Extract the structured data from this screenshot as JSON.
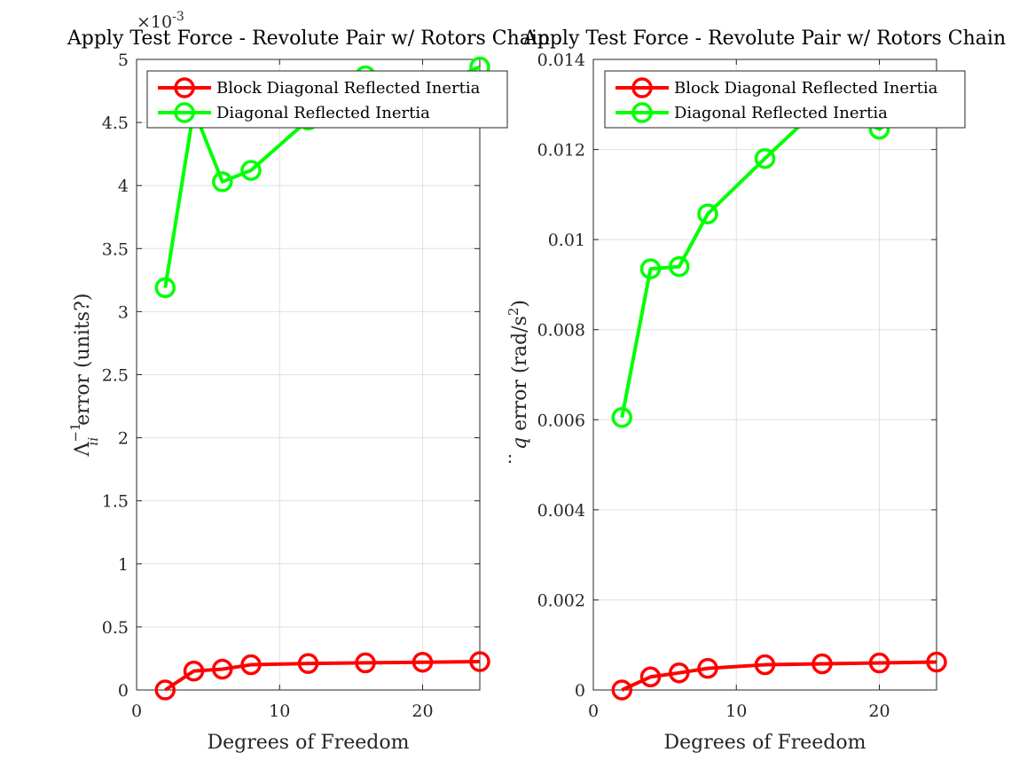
{
  "chart_data": [
    {
      "type": "line",
      "title": "Apply Test Force - Revolute Pair w/ Rotors Chain",
      "xlabel": "Degrees of Freedom",
      "ylabel_parts": {
        "base": "Λ",
        "sup": "−1",
        "sub": "ii",
        "rest": " error (units?)"
      },
      "exponent_label": "×10",
      "exponent_value": "-3",
      "xlim": [
        0,
        24
      ],
      "ylim": [
        0,
        5
      ],
      "xticks": [
        0,
        10,
        20
      ],
      "xtick_labels": [
        "0",
        "10",
        "20"
      ],
      "yticks": [
        0,
        0.5,
        1,
        1.5,
        2,
        2.5,
        3,
        3.5,
        4,
        4.5,
        5
      ],
      "ytick_labels": [
        "0",
        "0.5",
        "1",
        "1.5",
        "2",
        "2.5",
        "3",
        "3.5",
        "4",
        "4.5",
        "5"
      ],
      "grid": true,
      "legend_position": "top-right",
      "series": [
        {
          "name": "Block Diagonal Reflected Inertia",
          "color": "#ff0000",
          "x": [
            2,
            4,
            6,
            8,
            12,
            16,
            20,
            24
          ],
          "y": [
            0.0,
            0.15,
            0.165,
            0.2,
            0.21,
            0.215,
            0.22,
            0.225
          ]
        },
        {
          "name": "Diagonal Reflected Inertia",
          "color": "#00ff00",
          "x": [
            2,
            4,
            6,
            8,
            12,
            16,
            20,
            24
          ],
          "y": [
            3.19,
            4.6,
            4.03,
            4.12,
            4.52,
            4.87,
            4.75,
            4.94
          ]
        }
      ]
    },
    {
      "type": "line",
      "title": "Apply Test Force - Revolute Pair w/ Rotors Chain",
      "xlabel": "Degrees of Freedom",
      "ylabel_parts": {
        "qddot": "q",
        "rest": " error (rad/s",
        "sup": "2",
        "close": ")"
      },
      "xlim": [
        0,
        24
      ],
      "ylim": [
        0,
        0.014
      ],
      "xticks": [
        0,
        10,
        20
      ],
      "xtick_labels": [
        "0",
        "10",
        "20"
      ],
      "yticks": [
        0,
        0.002,
        0.004,
        0.006,
        0.008,
        0.01,
        0.012,
        0.014
      ],
      "ytick_labels": [
        "0",
        "0.002",
        "0.004",
        "0.006",
        "0.008",
        "0.01",
        "0.012",
        "0.014"
      ],
      "grid": true,
      "legend_position": "top-right",
      "series": [
        {
          "name": "Block Diagonal Reflected Inertia",
          "color": "#ff0000",
          "x": [
            2,
            4,
            6,
            8,
            12,
            16,
            20,
            24
          ],
          "y": [
            0.0,
            0.00029,
            0.00038,
            0.00048,
            0.00056,
            0.00058,
            0.0006,
            0.00062
          ]
        },
        {
          "name": "Diagonal Reflected Inertia",
          "color": "#00ff00",
          "x": [
            2,
            4,
            6,
            8,
            12,
            16,
            20,
            24
          ],
          "y": [
            0.00605,
            0.00935,
            0.0094,
            0.01057,
            0.0118,
            0.013,
            0.01245,
            0.0134
          ]
        }
      ]
    }
  ]
}
